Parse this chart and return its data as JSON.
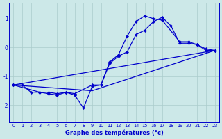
{
  "title": "",
  "xlabel": "Graphe des températures (°c)",
  "ylabel": "",
  "background_color": "#cce8e8",
  "grid_color": "#aacccc",
  "line_color": "#0000cc",
  "xlim": [
    -0.5,
    23.5
  ],
  "ylim": [
    -2.6,
    1.55
  ],
  "yticks": [
    -2,
    -1,
    0,
    1
  ],
  "xticks": [
    0,
    1,
    2,
    3,
    4,
    5,
    6,
    7,
    8,
    9,
    10,
    11,
    12,
    13,
    14,
    15,
    16,
    17,
    18,
    19,
    20,
    21,
    22,
    23
  ],
  "curve1_x": [
    0,
    1,
    2,
    3,
    4,
    5,
    6,
    7,
    8,
    9,
    10,
    11,
    12,
    13,
    14,
    15,
    16,
    17,
    18,
    19,
    20,
    21,
    22,
    23
  ],
  "curve1_y": [
    -1.3,
    -1.3,
    -1.55,
    -1.55,
    -1.6,
    -1.65,
    -1.55,
    -1.65,
    -2.1,
    -1.35,
    -1.3,
    -0.55,
    -0.3,
    -0.15,
    0.45,
    0.6,
    0.9,
    1.05,
    0.75,
    0.15,
    0.15,
    0.1,
    -0.1,
    -0.1
  ],
  "curve2_x": [
    0,
    3,
    4,
    5,
    6,
    7,
    9,
    10,
    11,
    12,
    13,
    14,
    15,
    16,
    17,
    19,
    20,
    21,
    22,
    23
  ],
  "curve2_y": [
    -1.3,
    -1.55,
    -1.55,
    -1.6,
    -1.55,
    -1.6,
    -1.3,
    -1.3,
    -0.5,
    -0.25,
    0.4,
    0.9,
    1.1,
    1.0,
    0.95,
    0.2,
    0.2,
    0.1,
    -0.05,
    -0.1
  ],
  "line3_x": [
    0,
    23
  ],
  "line3_y": [
    -1.3,
    -0.1
  ],
  "line4_x": [
    0,
    9,
    23
  ],
  "line4_y": [
    -1.3,
    -1.5,
    -0.1
  ]
}
